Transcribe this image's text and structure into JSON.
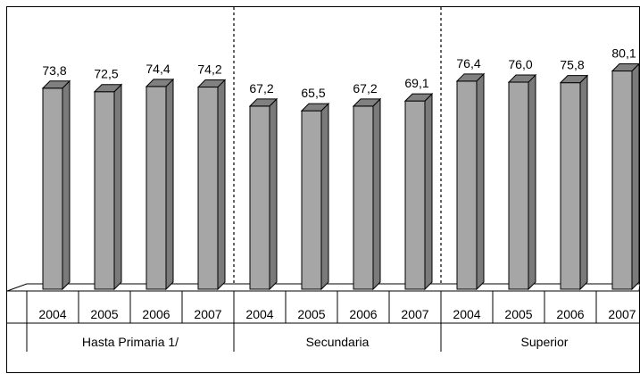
{
  "chart_data": {
    "type": "bar",
    "title": "",
    "xlabel": "",
    "ylabel": "",
    "ylim": [
      0,
      90
    ],
    "grid": false,
    "legend": "none",
    "bar_style": "3d",
    "colors": {
      "bar_front": "#a6a6a6",
      "bar_top": "#808080",
      "bar_side": "#7a7a7a",
      "outline": "#000000"
    },
    "groups": [
      {
        "name": "Hasta Primaria 1/",
        "categories": [
          "2004",
          "2005",
          "2006",
          "2007"
        ],
        "values": [
          73.8,
          72.5,
          74.4,
          74.2
        ],
        "labels": [
          "73,8",
          "72,5",
          "74,4",
          "74,2"
        ]
      },
      {
        "name": "Secundaria",
        "categories": [
          "2004",
          "2005",
          "2006",
          "2007"
        ],
        "values": [
          67.2,
          65.5,
          67.2,
          69.1
        ],
        "labels": [
          "67,2",
          "65,5",
          "67,2",
          "69,1"
        ]
      },
      {
        "name": "Superior",
        "categories": [
          "2004",
          "2005",
          "2006",
          "2007"
        ],
        "values": [
          76.4,
          76.0,
          75.8,
          80.1
        ],
        "labels": [
          "76,4",
          "76,0",
          "75,8",
          "80,1"
        ]
      }
    ]
  }
}
